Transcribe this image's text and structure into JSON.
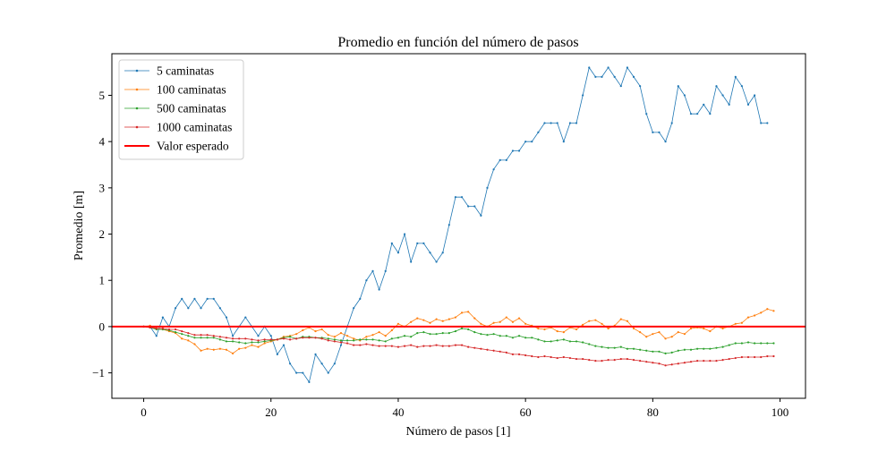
{
  "chart_data": {
    "type": "line",
    "title": "Promedio en función del número de pasos",
    "xlabel": "Número de pasos [1]",
    "ylabel": "Promedio [m]",
    "xlim": [
      -5,
      104
    ],
    "ylim": [
      -1.55,
      5.9
    ],
    "x_ticks": [
      0,
      20,
      40,
      60,
      80,
      100
    ],
    "y_ticks": [
      -1,
      0,
      1,
      2,
      3,
      4,
      5
    ],
    "x_tick_labels": [
      "0",
      "20",
      "40",
      "60",
      "80",
      "100"
    ],
    "y_tick_labels": [
      "−1",
      "0",
      "1",
      "2",
      "3",
      "4",
      "5"
    ],
    "grid": false,
    "legend_position": "top-left",
    "series": [
      {
        "name": "5 caminatas",
        "color": "#1f77b4",
        "values": [
          0,
          0,
          -0.2,
          0.2,
          0,
          0.4,
          0.6,
          0.4,
          0.6,
          0.4,
          0.6,
          0.6,
          0.4,
          0.2,
          -0.2,
          0,
          0.2,
          0,
          -0.2,
          0,
          -0.2,
          -0.6,
          -0.4,
          -0.8,
          -1.0,
          -1.0,
          -1.2,
          -0.6,
          -0.8,
          -1.0,
          -0.8,
          -0.4,
          0,
          0.4,
          0.6,
          1.0,
          1.2,
          0.8,
          1.2,
          1.8,
          1.6,
          2.0,
          1.4,
          1.8,
          1.8,
          1.6,
          1.4,
          1.6,
          2.2,
          2.8,
          2.8,
          2.6,
          2.6,
          2.4,
          3.0,
          3.4,
          3.6,
          3.6,
          3.8,
          3.8,
          4.0,
          4.0,
          4.2,
          4.4,
          4.4,
          4.4,
          4.0,
          4.4,
          4.4,
          5.0,
          5.6,
          5.4,
          5.4,
          5.6,
          5.4,
          5.2,
          5.6,
          5.4,
          5.2,
          4.6,
          4.2,
          4.2,
          4.0,
          4.4,
          5.2,
          5.0,
          4.6,
          4.6,
          4.8,
          4.6,
          5.2,
          5.0,
          4.8,
          5.4,
          5.2,
          4.8,
          5.0,
          4.4,
          4.4
        ]
      },
      {
        "name": "100 caminatas",
        "color": "#ff7f0e",
        "values": [
          0,
          0.02,
          -0.04,
          -0.06,
          -0.1,
          -0.14,
          -0.26,
          -0.3,
          -0.38,
          -0.52,
          -0.48,
          -0.5,
          -0.48,
          -0.5,
          -0.58,
          -0.48,
          -0.46,
          -0.4,
          -0.44,
          -0.36,
          -0.32,
          -0.28,
          -0.22,
          -0.2,
          -0.16,
          -0.08,
          -0.02,
          -0.1,
          -0.06,
          -0.18,
          -0.22,
          -0.14,
          -0.2,
          -0.26,
          -0.3,
          -0.22,
          -0.18,
          -0.12,
          -0.2,
          -0.08,
          0.06,
          0,
          0.1,
          0.18,
          0.14,
          0.08,
          0.16,
          0.12,
          0.16,
          0.2,
          0.3,
          0.32,
          0.18,
          0.06,
          0,
          0.08,
          0.1,
          0.2,
          0.1,
          0.18,
          0.06,
          0.02,
          -0.04,
          -0.06,
          -0.02,
          -0.1,
          -0.12,
          -0.02,
          -0.06,
          0.04,
          0.12,
          0.14,
          0.06,
          -0.04,
          0.02,
          0.16,
          0.12,
          -0.04,
          -0.12,
          -0.22,
          -0.16,
          -0.12,
          -0.26,
          -0.22,
          -0.12,
          -0.16,
          -0.04,
          -0.02,
          -0.04,
          -0.1,
          0,
          -0.04,
          0,
          0.06,
          0.08,
          0.2,
          0.24,
          0.3,
          0.38,
          0.34
        ]
      },
      {
        "name": "500 caminatas",
        "color": "#2ca02c",
        "values": [
          0,
          -0.02,
          -0.06,
          -0.06,
          -0.08,
          -0.12,
          -0.16,
          -0.2,
          -0.24,
          -0.24,
          -0.24,
          -0.24,
          -0.28,
          -0.32,
          -0.32,
          -0.34,
          -0.36,
          -0.34,
          -0.34,
          -0.32,
          -0.3,
          -0.28,
          -0.24,
          -0.22,
          -0.26,
          -0.22,
          -0.22,
          -0.24,
          -0.24,
          -0.26,
          -0.28,
          -0.3,
          -0.3,
          -0.3,
          -0.28,
          -0.28,
          -0.28,
          -0.3,
          -0.32,
          -0.26,
          -0.24,
          -0.2,
          -0.22,
          -0.14,
          -0.12,
          -0.16,
          -0.16,
          -0.14,
          -0.14,
          -0.1,
          -0.04,
          -0.06,
          -0.12,
          -0.16,
          -0.18,
          -0.16,
          -0.2,
          -0.2,
          -0.24,
          -0.2,
          -0.24,
          -0.24,
          -0.28,
          -0.32,
          -0.32,
          -0.3,
          -0.28,
          -0.32,
          -0.32,
          -0.34,
          -0.38,
          -0.42,
          -0.44,
          -0.46,
          -0.46,
          -0.44,
          -0.48,
          -0.48,
          -0.5,
          -0.52,
          -0.54,
          -0.54,
          -0.58,
          -0.56,
          -0.52,
          -0.5,
          -0.5,
          -0.48,
          -0.48,
          -0.48,
          -0.46,
          -0.44,
          -0.4,
          -0.36,
          -0.36,
          -0.34,
          -0.36,
          -0.36,
          -0.36,
          -0.36
        ]
      },
      {
        "name": "1000 caminatas",
        "color": "#d62728",
        "values": [
          0,
          -0.02,
          -0.04,
          -0.04,
          -0.06,
          -0.06,
          -0.1,
          -0.14,
          -0.18,
          -0.18,
          -0.18,
          -0.2,
          -0.22,
          -0.24,
          -0.26,
          -0.26,
          -0.26,
          -0.28,
          -0.3,
          -0.28,
          -0.28,
          -0.28,
          -0.26,
          -0.28,
          -0.26,
          -0.24,
          -0.24,
          -0.24,
          -0.26,
          -0.3,
          -0.32,
          -0.34,
          -0.36,
          -0.4,
          -0.4,
          -0.38,
          -0.4,
          -0.42,
          -0.42,
          -0.42,
          -0.44,
          -0.42,
          -0.4,
          -0.44,
          -0.42,
          -0.42,
          -0.4,
          -0.42,
          -0.42,
          -0.4,
          -0.4,
          -0.44,
          -0.46,
          -0.48,
          -0.5,
          -0.52,
          -0.54,
          -0.56,
          -0.6,
          -0.6,
          -0.62,
          -0.64,
          -0.66,
          -0.64,
          -0.66,
          -0.68,
          -0.66,
          -0.68,
          -0.7,
          -0.7,
          -0.72,
          -0.74,
          -0.74,
          -0.72,
          -0.72,
          -0.7,
          -0.7,
          -0.72,
          -0.74,
          -0.76,
          -0.78,
          -0.8,
          -0.84,
          -0.82,
          -0.8,
          -0.78,
          -0.76,
          -0.74,
          -0.74,
          -0.74,
          -0.74,
          -0.72,
          -0.7,
          -0.68,
          -0.66,
          -0.66,
          -0.66,
          -0.66,
          -0.64,
          -0.64
        ]
      },
      {
        "name": "Valor esperado",
        "color": "#ff0000",
        "values": [
          0,
          0
        ]
      }
    ],
    "expected_value": 0
  }
}
